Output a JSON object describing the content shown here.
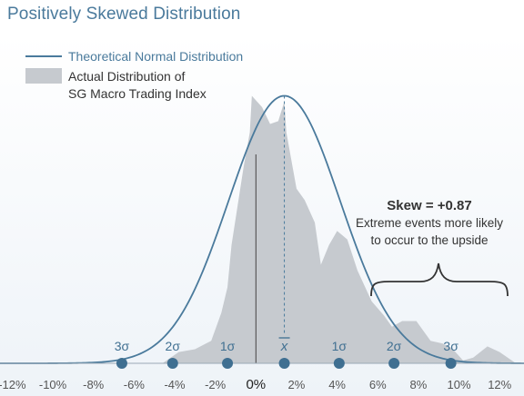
{
  "title": "Positively Skewed Distribution",
  "chart_data": {
    "type": "area",
    "title": "Positively Skewed Distribution",
    "xlim": [
      -12.6,
      13.2
    ],
    "ylim": [
      0,
      1.0
    ],
    "x_ticks": [
      -12,
      -10,
      -8,
      -6,
      -4,
      -2,
      0,
      2,
      4,
      6,
      8,
      10,
      12
    ],
    "x_tick_labels": [
      "-12%",
      "-10%",
      "-8%",
      "-6%",
      "-4%",
      "-2%",
      "0%",
      "2%",
      "4%",
      "6%",
      "8%",
      "10%",
      "12%"
    ],
    "legend": {
      "position": "top-left",
      "entries": [
        {
          "label": "Theoretical Normal Distribution",
          "style": "line"
        },
        {
          "label_lines": [
            "Actual Distribution of",
            "SG Macro Trading Index"
          ],
          "style": "area"
        }
      ]
    },
    "series": [
      {
        "name": "Theoretical Normal Distribution",
        "kind": "line",
        "color": "#4a7a9c",
        "mean": 1.4,
        "sd": 2.75,
        "peak": 0.95
      },
      {
        "name": "Actual Distribution of SG Macro Trading Index",
        "kind": "area",
        "color": "#c6cacf",
        "x": [
          -4.6,
          -3.8,
          -3.0,
          -2.2,
          -1.7,
          -1.4,
          -1.2,
          -0.6,
          -0.3,
          -0.2,
          0.3,
          0.7,
          1.1,
          1.4,
          1.5,
          1.8,
          2.0,
          2.4,
          2.9,
          3.2,
          3.6,
          4.0,
          4.5,
          5.0,
          5.7,
          6.3,
          6.7,
          7.2,
          7.9,
          8.6,
          9.2,
          9.7,
          10.2,
          10.7,
          11.4,
          12.0,
          12.8
        ],
        "y": [
          0,
          0.04,
          0.05,
          0.08,
          0.18,
          0.27,
          0.42,
          0.7,
          0.82,
          0.95,
          0.91,
          0.85,
          0.86,
          0.93,
          0.82,
          0.7,
          0.62,
          0.58,
          0.5,
          0.35,
          0.42,
          0.47,
          0.44,
          0.33,
          0.22,
          0.17,
          0.13,
          0.15,
          0.15,
          0.08,
          0.07,
          0.05,
          0.01,
          0.02,
          0.06,
          0.04,
          0
        ]
      }
    ],
    "sigma_markers": [
      {
        "label": "3σ",
        "x": -6.6
      },
      {
        "label": "2σ",
        "x": -4.1
      },
      {
        "label": "1σ",
        "x": -1.4
      },
      {
        "label": "x̅",
        "x": 1.4
      },
      {
        "label": "1σ",
        "x": 4.1
      },
      {
        "label": "2σ",
        "x": 6.8
      },
      {
        "label": "3σ",
        "x": 9.6
      }
    ],
    "mean_label": "x",
    "zero_line_x": 0,
    "annotations": {
      "skew": "Skew = +0.87",
      "line1": "Extreme events more likely",
      "line2": "to occur to the upside"
    },
    "colors": {
      "curve": "#4a7a9c",
      "area": "#c6cacf",
      "marker": "#3f6f91",
      "axis_text": "#555555",
      "zero_line": "#444444"
    }
  }
}
